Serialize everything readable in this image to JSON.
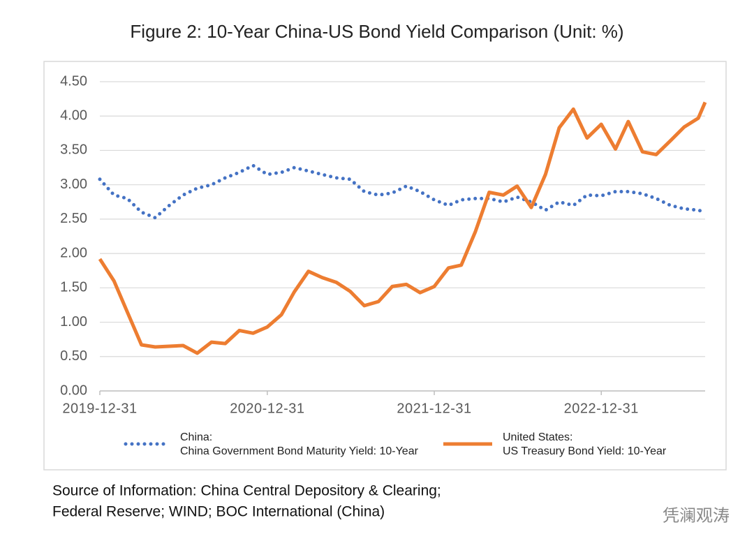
{
  "chart_data": {
    "type": "line",
    "title": "Figure 2: 10-Year China-US Bond Yield Comparison (Unit: %)",
    "x": [
      "2019-12-31",
      "2020-01-31",
      "2020-02-29",
      "2020-03-31",
      "2020-04-30",
      "2020-05-31",
      "2020-06-30",
      "2020-07-31",
      "2020-08-31",
      "2020-09-30",
      "2020-10-31",
      "2020-11-30",
      "2020-12-31",
      "2021-01-31",
      "2021-02-28",
      "2021-03-31",
      "2021-04-30",
      "2021-05-31",
      "2021-06-30",
      "2021-07-31",
      "2021-08-31",
      "2021-09-30",
      "2021-10-31",
      "2021-11-30",
      "2021-12-31",
      "2022-01-31",
      "2022-02-28",
      "2022-03-31",
      "2022-04-30",
      "2022-05-31",
      "2022-06-30",
      "2022-07-31",
      "2022-08-31",
      "2022-09-30",
      "2022-10-31",
      "2022-11-30",
      "2022-12-31",
      "2023-01-31",
      "2023-02-28",
      "2023-03-31",
      "2023-04-30",
      "2023-05-31",
      "2023-06-30",
      "2023-07-31",
      "2023-08-15"
    ],
    "series": [
      {
        "name": "China:\nChina Government Bond Maturity Yield: 10-Year",
        "color": "#4472c4",
        "style": "dotted",
        "values": [
          3.08,
          2.85,
          2.8,
          2.6,
          2.52,
          2.7,
          2.85,
          2.95,
          3.0,
          3.1,
          3.18,
          3.28,
          3.15,
          3.18,
          3.25,
          3.2,
          3.15,
          3.1,
          3.08,
          2.9,
          2.85,
          2.88,
          2.98,
          2.9,
          2.78,
          2.7,
          2.78,
          2.8,
          2.8,
          2.75,
          2.82,
          2.75,
          2.63,
          2.75,
          2.7,
          2.85,
          2.84,
          2.9,
          2.9,
          2.87,
          2.8,
          2.7,
          2.65,
          2.63,
          2.6
        ]
      },
      {
        "name": "United States:\nUS Treasury Bond Yield: 10-Year",
        "color": "#ed7d31",
        "style": "solid",
        "values": [
          1.92,
          1.6,
          1.15,
          0.67,
          0.64,
          0.65,
          0.66,
          0.55,
          0.71,
          0.69,
          0.88,
          0.84,
          0.93,
          1.11,
          1.44,
          1.74,
          1.65,
          1.58,
          1.45,
          1.24,
          1.3,
          1.52,
          1.55,
          1.43,
          1.52,
          1.79,
          1.83,
          2.32,
          2.89,
          2.85,
          2.98,
          2.67,
          3.15,
          3.83,
          4.1,
          3.68,
          3.88,
          3.52,
          3.92,
          3.48,
          3.44,
          3.64,
          3.84,
          3.97,
          4.2
        ]
      }
    ],
    "xlim": [
      "2019-12-31",
      "2023-08-15"
    ],
    "xticks": [
      "2019-12-31",
      "2020-12-31",
      "2021-12-31",
      "2022-12-31"
    ],
    "ylim": [
      0,
      4.5
    ],
    "yticks": [
      {
        "value": 0,
        "label": "0.00"
      },
      {
        "value": 0.5,
        "label": "0.50"
      },
      {
        "value": 1,
        "label": "1.00"
      },
      {
        "value": 1.5,
        "label": "1.50"
      },
      {
        "value": 2,
        "label": "2.00"
      },
      {
        "value": 2.5,
        "label": "2.50"
      },
      {
        "value": 3,
        "label": "3.00"
      },
      {
        "value": 3.5,
        "label": "3.50"
      },
      {
        "value": 4,
        "label": "4.00"
      },
      {
        "value": 4.5,
        "label": "4.50"
      }
    ],
    "grid": true,
    "legend": "bottom",
    "source": [
      "Source of Information: China Central Depository & Clearing;",
      "Federal Reserve; WIND; BOC International (China)"
    ],
    "watermark": "凭澜观涛"
  }
}
